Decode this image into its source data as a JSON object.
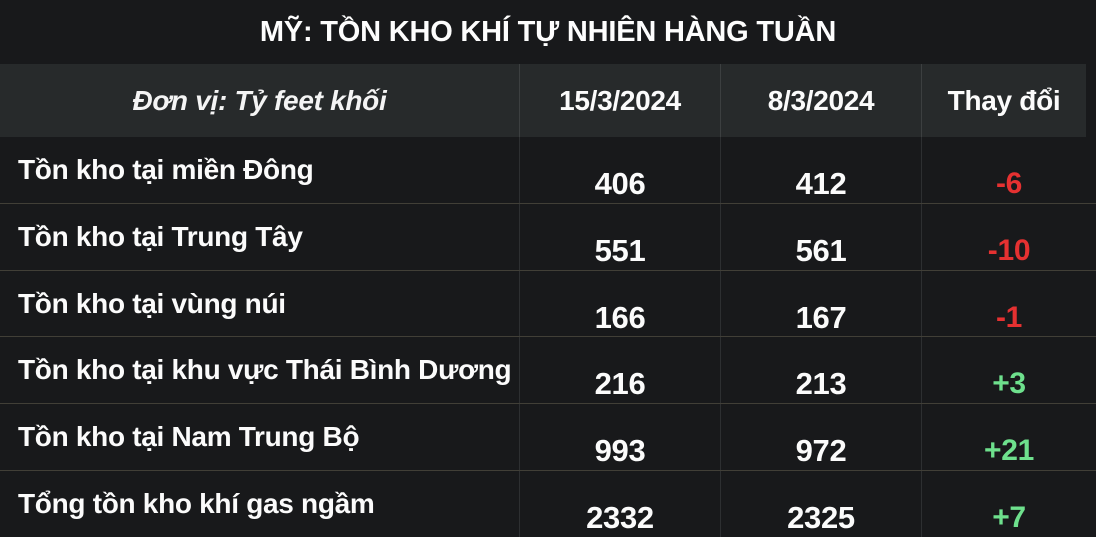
{
  "title": "MỸ: TỒN KHO KHÍ TỰ NHIÊN HÀNG TUẦN",
  "table": {
    "unit_label": "Đơn vị: Tỷ feet khối",
    "columns": [
      "15/3/2024",
      "8/3/2024",
      "Thay đổi"
    ],
    "rows": [
      {
        "label": "Tồn kho tại miền Đông",
        "current": "406",
        "previous": "412",
        "change": "-6"
      },
      {
        "label": "Tồn kho tại Trung Tây",
        "current": "551",
        "previous": "561",
        "change": "-10"
      },
      {
        "label": "Tồn kho tại vùng núi",
        "current": "166",
        "previous": "167",
        "change": "-1"
      },
      {
        "label": "Tồn kho tại khu vực Thái Bình Dương",
        "current": "216",
        "previous": "213",
        "change": "+3"
      },
      {
        "label": "Tồn kho tại Nam Trung Bộ",
        "current": "993",
        "previous": "972",
        "change": "+21"
      },
      {
        "label": "Tổng tồn kho khí gas ngầm",
        "current": "2332",
        "previous": "2325",
        "change": "+7"
      }
    ]
  },
  "colors": {
    "positive": "#6ee08d",
    "negative": "#e53131",
    "header_background": "#272a2b",
    "page_background": "#18191b"
  }
}
